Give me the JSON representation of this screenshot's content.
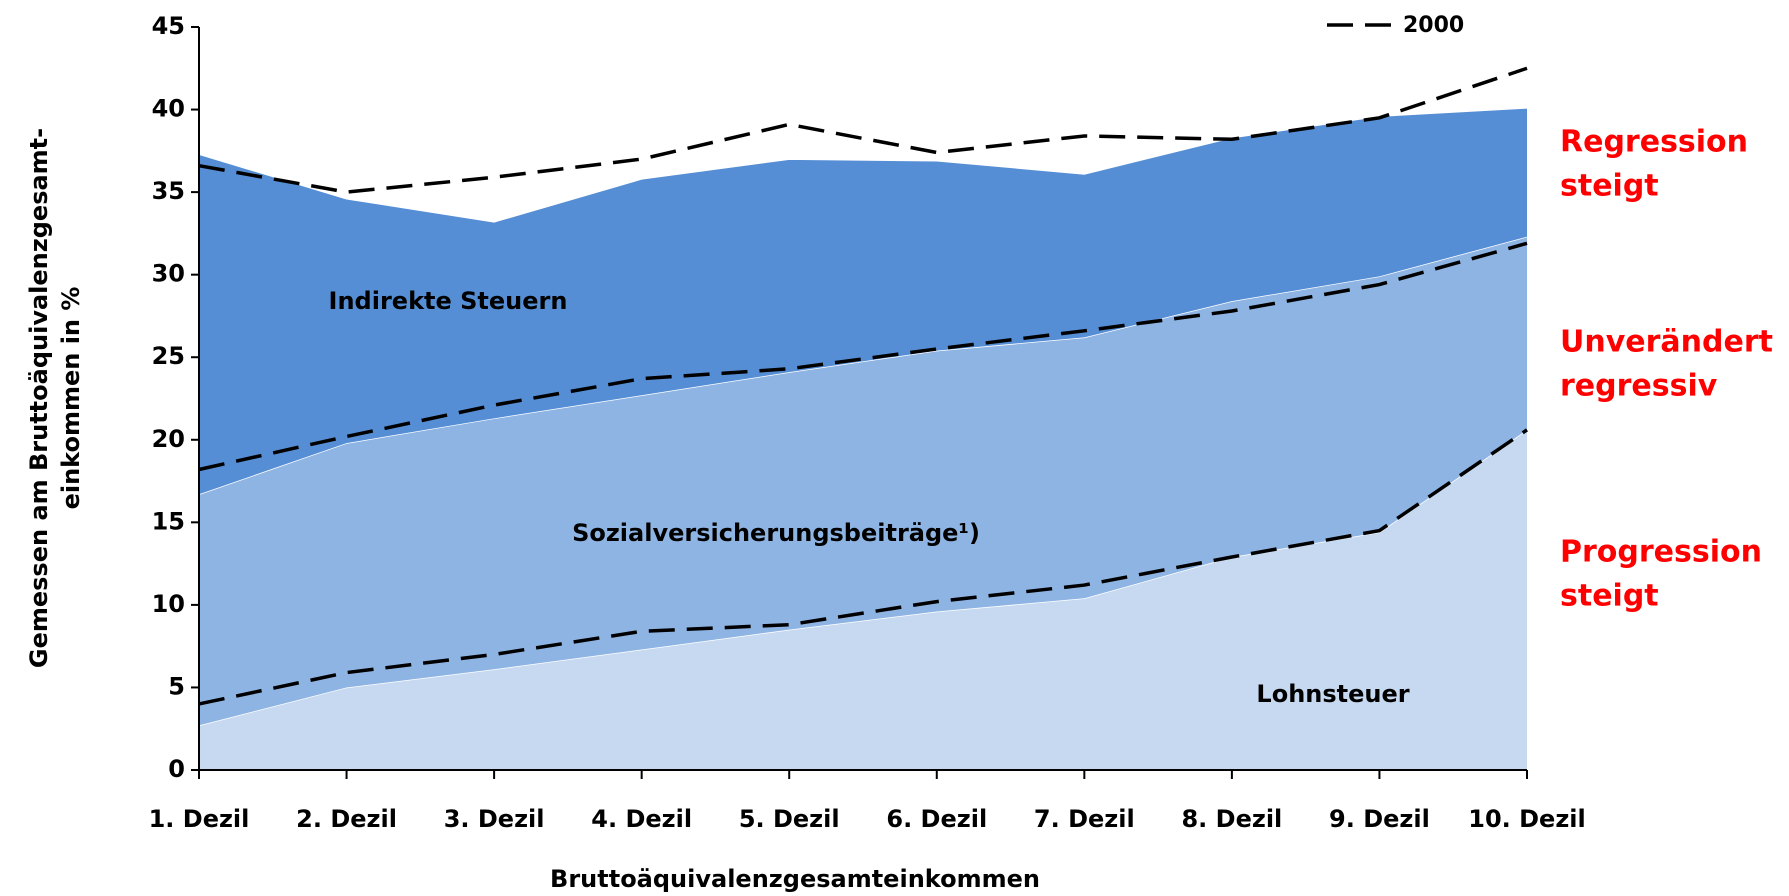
{
  "chart_data": {
    "type": "stacked_area",
    "xlabel": "Bruttoäquivalenzgesamteinkommen",
    "ylabel": [
      "Gemessen am Bruttoäquivalenzgesamt-",
      "einkommen in %"
    ],
    "categories": [
      "1. Dezil",
      "2. Dezil",
      "3. Dezil",
      "4. Dezil",
      "5. Dezil",
      "6. Dezil",
      "7. Dezil",
      "8. Dezil",
      "9. Dezil",
      "10. Dezil"
    ],
    "series": [
      {
        "name": "Lohnsteuer",
        "color": "#c6d9f1",
        "values": [
          2.7,
          5.0,
          6.1,
          7.3,
          8.5,
          9.6,
          10.4,
          12.9,
          14.4,
          20.6
        ]
      },
      {
        "name": "Sozialversicherungsbeiträge¹)",
        "color": "#8eb4e3",
        "values": [
          14.0,
          14.8,
          15.2,
          15.4,
          15.6,
          15.8,
          15.8,
          15.5,
          15.5,
          11.7
        ]
      },
      {
        "name": "Indirekte Steuern",
        "color": "#558ed5",
        "values": [
          20.6,
          14.8,
          11.9,
          13.1,
          12.9,
          11.5,
          9.9,
          9.9,
          9.7,
          7.8
        ]
      }
    ],
    "reference": {
      "name": "2000",
      "color": "#000000",
      "lines": [
        [
          4.0,
          5.9,
          7.0,
          8.4,
          8.8,
          10.2,
          11.2,
          12.9,
          14.5,
          20.6
        ],
        [
          18.2,
          20.2,
          22.1,
          23.7,
          24.3,
          25.5,
          26.6,
          27.8,
          29.4,
          31.9
        ],
        [
          36.6,
          35.0,
          35.9,
          37.0,
          39.1,
          37.4,
          38.4,
          38.2,
          39.5,
          42.5
        ]
      ]
    },
    "annotations": [
      [
        "Regression",
        "steigt"
      ],
      [
        "Unverändert",
        "regressiv"
      ],
      [
        "Progression",
        "steigt"
      ]
    ],
    "ylim": [
      0,
      45
    ],
    "yticks": [
      0,
      5,
      10,
      15,
      20,
      25,
      30,
      35,
      40,
      45
    ],
    "legend": "top-right"
  }
}
